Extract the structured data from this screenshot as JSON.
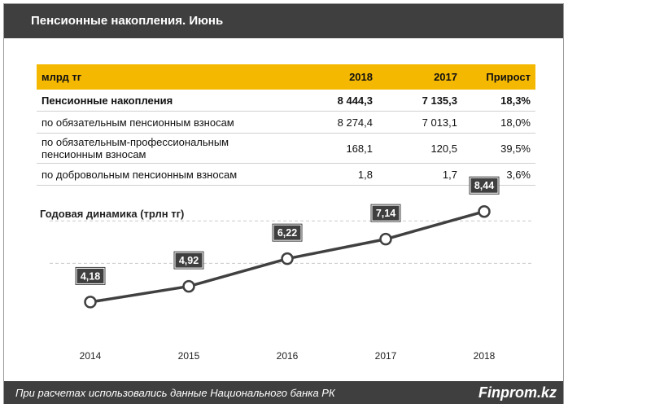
{
  "header": {
    "title": "Пенсионные накопления. Июнь"
  },
  "table": {
    "columns": [
      "млрд тг",
      "2018",
      "2017",
      "Прирост"
    ],
    "rows": [
      {
        "label": "Пенсионные накопления",
        "v2018": "8 444,3",
        "v2017": "7 135,3",
        "growth": "18,3%",
        "bold": true
      },
      {
        "label": "по обязательным пенсионным взносам",
        "v2018": "8 274,4",
        "v2017": "7 013,1",
        "growth": "18,0%"
      },
      {
        "label": "по обязательным-профессиональным пенсионным взносам",
        "v2018": "168,1",
        "v2017": "120,5",
        "growth": "39,5%"
      },
      {
        "label": "по добровольным пенсионным взносам",
        "v2018": "1,8",
        "v2017": "1,7",
        "growth": "3,6%"
      }
    ]
  },
  "chart_data": {
    "type": "line",
    "title": "Годовая динамика  (трлн тг)",
    "categories": [
      "2014",
      "2015",
      "2016",
      "2017",
      "2018"
    ],
    "values": [
      4.18,
      4.92,
      6.22,
      7.14,
      8.44
    ],
    "data_labels": [
      "4,18",
      "4,92",
      "6,22",
      "7,14",
      "8,44"
    ],
    "ylim": [
      0,
      10
    ],
    "grid": true,
    "line_color": "#404040",
    "label_bg_color": "#3f3f3f"
  },
  "footer": {
    "note": "При расчетах использовались данные  Национального  банка РК",
    "brand": "Finprom.kz"
  },
  "colors": {
    "header_bg": "#3f3f3f",
    "accent": "#f5b800"
  }
}
